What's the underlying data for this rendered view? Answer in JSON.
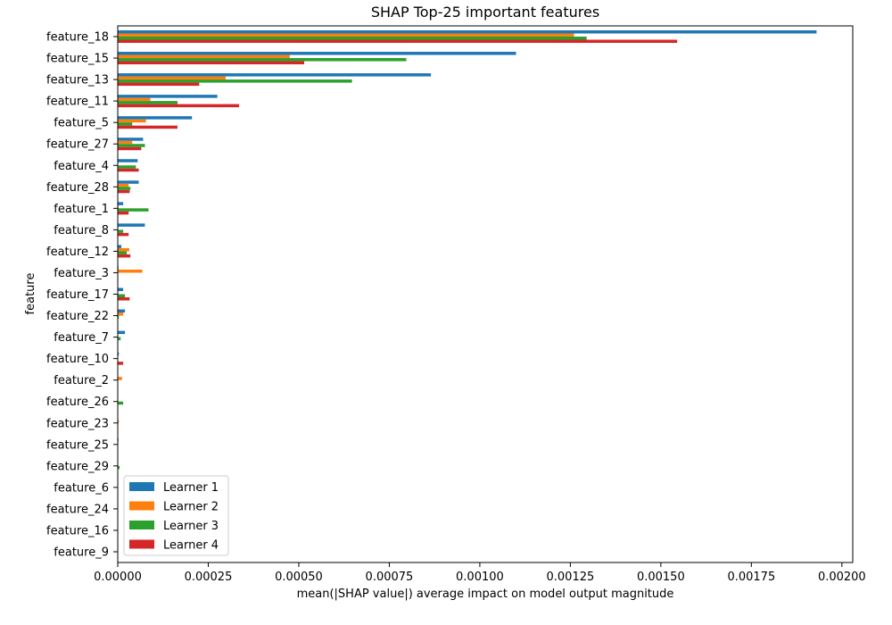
{
  "chart_data": {
    "type": "bar",
    "orientation": "horizontal",
    "title": "SHAP Top-25 important features",
    "xlabel": "mean(|SHAP value|) average impact on model output magnitude",
    "ylabel": "feature",
    "xlim": [
      0,
      0.00203
    ],
    "xticks": [
      0,
      0.00025,
      0.0005,
      0.00075,
      0.001,
      0.00125,
      0.0015,
      0.00175,
      0.002
    ],
    "xtick_labels": [
      "0.00000",
      "0.00025",
      "0.00050",
      "0.00075",
      "0.00100",
      "0.00125",
      "0.00150",
      "0.00175",
      "0.00200"
    ],
    "grid": false,
    "legend_position": "lower-left",
    "categories": [
      "feature_18",
      "feature_15",
      "feature_13",
      "feature_11",
      "feature_5",
      "feature_27",
      "feature_4",
      "feature_28",
      "feature_1",
      "feature_8",
      "feature_12",
      "feature_3",
      "feature_17",
      "feature_22",
      "feature_7",
      "feature_10",
      "feature_2",
      "feature_26",
      "feature_23",
      "feature_25",
      "feature_29",
      "feature_6",
      "feature_24",
      "feature_16",
      "feature_9"
    ],
    "series": [
      {
        "name": "Learner 1",
        "color": "#1f77b4",
        "values": [
          0.00193,
          0.0011,
          0.000865,
          0.000275,
          0.000205,
          7e-05,
          5.5e-05,
          5.8e-05,
          1.5e-05,
          7.5e-05,
          1e-05,
          2e-06,
          1.5e-05,
          2e-05,
          2e-05,
          3e-06,
          0.0,
          0.0,
          0.0,
          2e-06,
          0.0,
          0.0,
          0.0,
          0.0,
          0.0
        ]
      },
      {
        "name": "Learner 2",
        "color": "#ff7f0e",
        "values": [
          0.00126,
          0.000475,
          0.000298,
          9e-05,
          7.8e-05,
          4e-05,
          0.0,
          3e-05,
          2e-06,
          0.0,
          3.2e-05,
          6.8e-05,
          0.0,
          1.5e-05,
          0.0,
          0.0,
          1.2e-05,
          0.0,
          3e-06,
          0.0,
          0.0,
          0.0,
          0.0,
          0.0,
          0.0
        ]
      },
      {
        "name": "Learner 3",
        "color": "#2ca02c",
        "values": [
          0.001295,
          0.000797,
          0.000647,
          0.000165,
          4e-05,
          7.5e-05,
          5e-05,
          3.5e-05,
          8.5e-05,
          1.5e-05,
          2.5e-05,
          0.0,
          2e-05,
          3e-06,
          8e-06,
          0.0,
          0.0,
          1.5e-05,
          0.0,
          0.0,
          5e-06,
          0.0,
          0.0,
          0.0,
          0.0
        ]
      },
      {
        "name": "Learner 4",
        "color": "#d62728",
        "values": [
          0.001545,
          0.000515,
          0.000225,
          0.000335,
          0.000165,
          6.5e-05,
          5.8e-05,
          3.3e-05,
          3e-05,
          3e-05,
          3.5e-05,
          0.0,
          3.3e-05,
          0.0,
          0.0,
          1.5e-05,
          0.0,
          0.0,
          0.0,
          0.0,
          0.0,
          0.0,
          0.0,
          0.0,
          0.0
        ]
      }
    ]
  }
}
